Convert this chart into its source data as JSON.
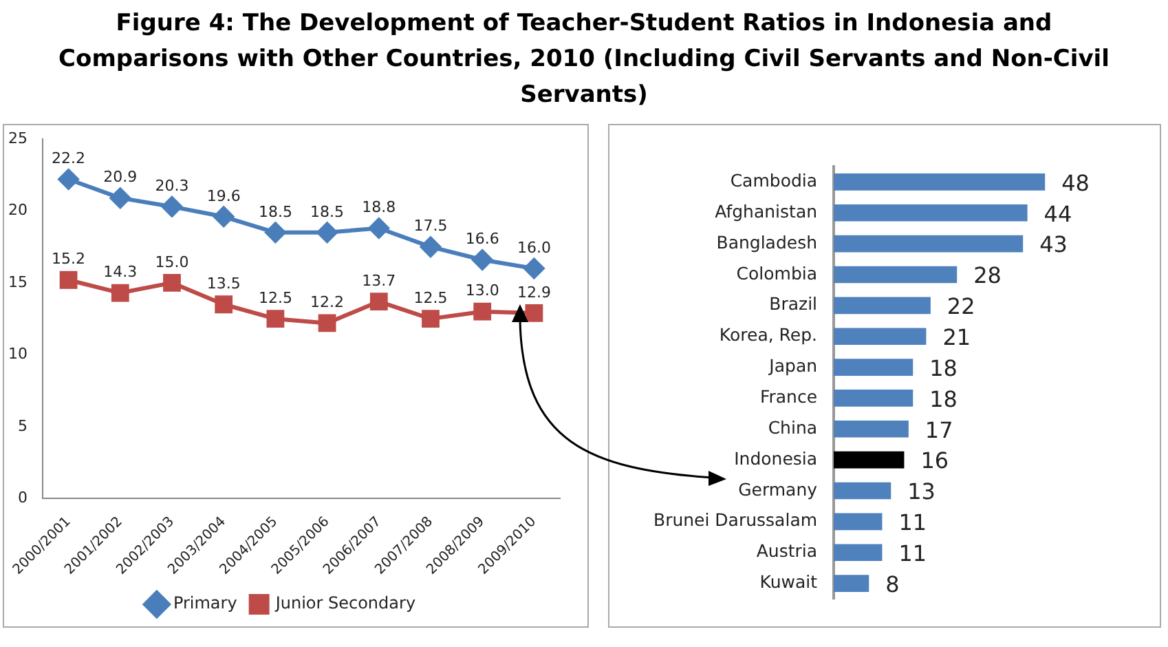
{
  "chart_data": [
    {
      "type": "line",
      "title": "Figure  4: The Development of Teacher-Student Ratios in Indonesia and Comparisons with Other Countries, 2010 (Including Civil Servants and Non-Civil Servants)",
      "categories": [
        "2000/2001",
        "2001/2002",
        "2002/2003",
        "2003/2004",
        "2004/2005",
        "2005/2006",
        "2006/2007",
        "2007/2008",
        "2008/2009",
        "2009/2010"
      ],
      "series": [
        {
          "name": "Primary",
          "color": "#4a7ebb",
          "marker": "diamond",
          "values": [
            22.2,
            20.9,
            20.3,
            19.6,
            18.5,
            18.5,
            18.8,
            17.5,
            16.6,
            16.0
          ],
          "value_labels": [
            "22.2",
            "20.9",
            "20.3",
            "19.6",
            "18.5",
            "18.5",
            "18.8",
            "17.5",
            "16.6",
            "16.0"
          ]
        },
        {
          "name": "Junior Secondary",
          "color": "#be4b48",
          "marker": "square",
          "values": [
            15.2,
            14.3,
            15.0,
            13.5,
            12.5,
            12.2,
            13.7,
            12.5,
            13.0,
            12.9
          ],
          "value_labels": [
            "15.2",
            "14.3",
            "15.0",
            "13.5",
            "12.5",
            "12.2",
            "13.7",
            "12.5",
            "13.0",
            "12.9"
          ]
        }
      ],
      "ylim": [
        0,
        25
      ],
      "yticks": [
        0,
        5,
        10,
        15,
        20,
        25
      ],
      "grid": false,
      "legend": "bottom"
    },
    {
      "type": "bar",
      "orientation": "horizontal",
      "categories": [
        "Cambodia",
        "Afghanistan",
        "Bangladesh",
        "Colombia",
        "Brazil",
        "Korea, Rep.",
        "Japan",
        "France",
        "China",
        "Indonesia",
        "Germany",
        "Brunei Darussalam",
        "Austria",
        "Kuwait"
      ],
      "values": [
        48,
        44,
        43,
        28,
        22,
        21,
        18,
        18,
        17,
        16,
        13,
        11,
        11,
        8
      ],
      "colors": [
        "#4f81bd",
        "#4f81bd",
        "#4f81bd",
        "#4f81bd",
        "#4f81bd",
        "#4f81bd",
        "#4f81bd",
        "#4f81bd",
        "#4f81bd",
        "#000000",
        "#4f81bd",
        "#4f81bd",
        "#4f81bd",
        "#4f81bd"
      ],
      "data_labels": true,
      "grid": false,
      "legend": false,
      "tick_labels": "y"
    }
  ]
}
